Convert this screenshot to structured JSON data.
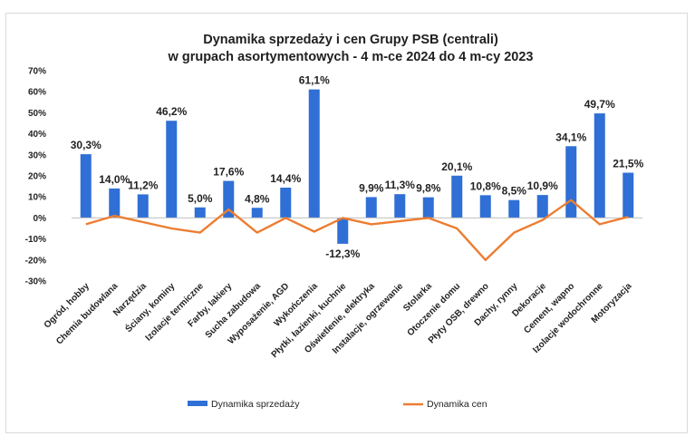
{
  "chart_data": {
    "type": "bar",
    "title_lines": [
      "Dynamika sprzedaży  i cen Grupy PSB (centrali)",
      "w grupach asortymentowych  - 4 m-ce 2024 do 4 m-cy 2023"
    ],
    "categories": [
      "Ogród, hobby",
      "Chemia budowlana",
      "Narzędzia",
      "Ściany, kominy",
      "Izolacje termiczne",
      "Farby, lakiery",
      "Sucha zabudowa",
      "Wyposażenie, AGD",
      "Wykończenia",
      "Płytki, łazienki, kuchnie",
      "Oświetlenie, elektryka",
      "Instalacje, ogrzewanie",
      "Stolarka",
      "Otoczenie domu",
      "Płyty OSB, drewno",
      "Dachy, rynny",
      "Dekoracje",
      "Cement, wapno",
      "Izolacje wodochronne",
      "Motoryzacja"
    ],
    "series": [
      {
        "name": "Dynamika sprzedaży",
        "type": "bar",
        "color": "#2f6fd6",
        "values": [
          30.3,
          14.0,
          11.2,
          46.2,
          5.0,
          17.6,
          4.8,
          14.4,
          61.1,
          -12.3,
          9.9,
          11.3,
          9.8,
          20.1,
          10.8,
          8.5,
          10.9,
          34.1,
          49.7,
          21.5
        ],
        "labels": [
          "30,3%",
          "14,0%",
          "11,2%",
          "46,2%",
          "5,0%",
          "17,6%",
          "4,8%",
          "14,4%",
          "61,1%",
          "-12,3%",
          "9,9%",
          "11,3%",
          "9,8%",
          "20,1%",
          "10,8%",
          "8,5%",
          "10,9%",
          "34,1%",
          "49,7%",
          "21,5%"
        ]
      },
      {
        "name": "Dynamika cen",
        "type": "line",
        "color": "#ed7d31",
        "values": [
          -3,
          1,
          -2,
          -5,
          -7,
          4,
          -7,
          0,
          -6.5,
          0,
          -3,
          -1.5,
          0,
          -5,
          -20,
          -7,
          -1,
          8.5,
          -3,
          0.5
        ]
      }
    ],
    "ylim": [
      -30,
      70
    ],
    "yticks": [
      "70%",
      "60%",
      "50%",
      "40%",
      "30%",
      "20%",
      "10%",
      "0%",
      "-10%",
      "-20%",
      "-30%"
    ],
    "ytick_values": [
      70,
      60,
      50,
      40,
      30,
      20,
      10,
      0,
      -10,
      -20,
      -30
    ],
    "legend_position": "bottom",
    "grid": false
  }
}
